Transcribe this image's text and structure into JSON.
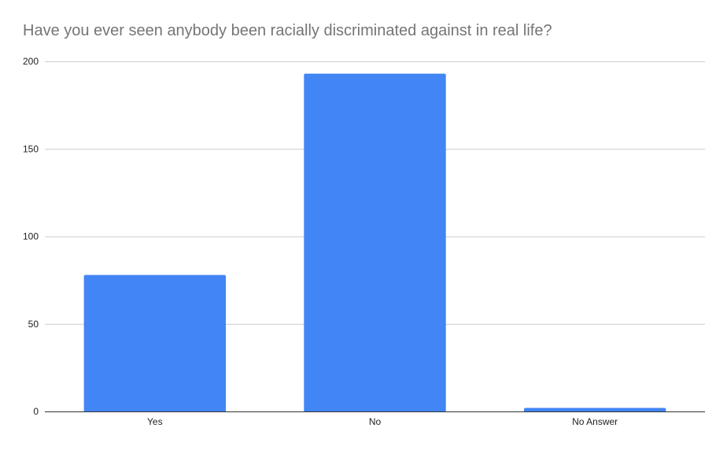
{
  "chart_data": {
    "type": "bar",
    "title": "Have you ever seen anybody been racially discriminated against in real life?",
    "xlabel": "",
    "ylabel": "",
    "categories": [
      "Yes",
      "No",
      "No Answer"
    ],
    "values": [
      78,
      193,
      2
    ],
    "ylim": [
      0,
      200
    ],
    "yticks": [
      "0",
      "50",
      "100",
      "150",
      "200"
    ],
    "grid": true,
    "legend": "none",
    "bar_color": "#4285f4",
    "grid_color": "#cccccc",
    "axis_color": "#333333"
  }
}
